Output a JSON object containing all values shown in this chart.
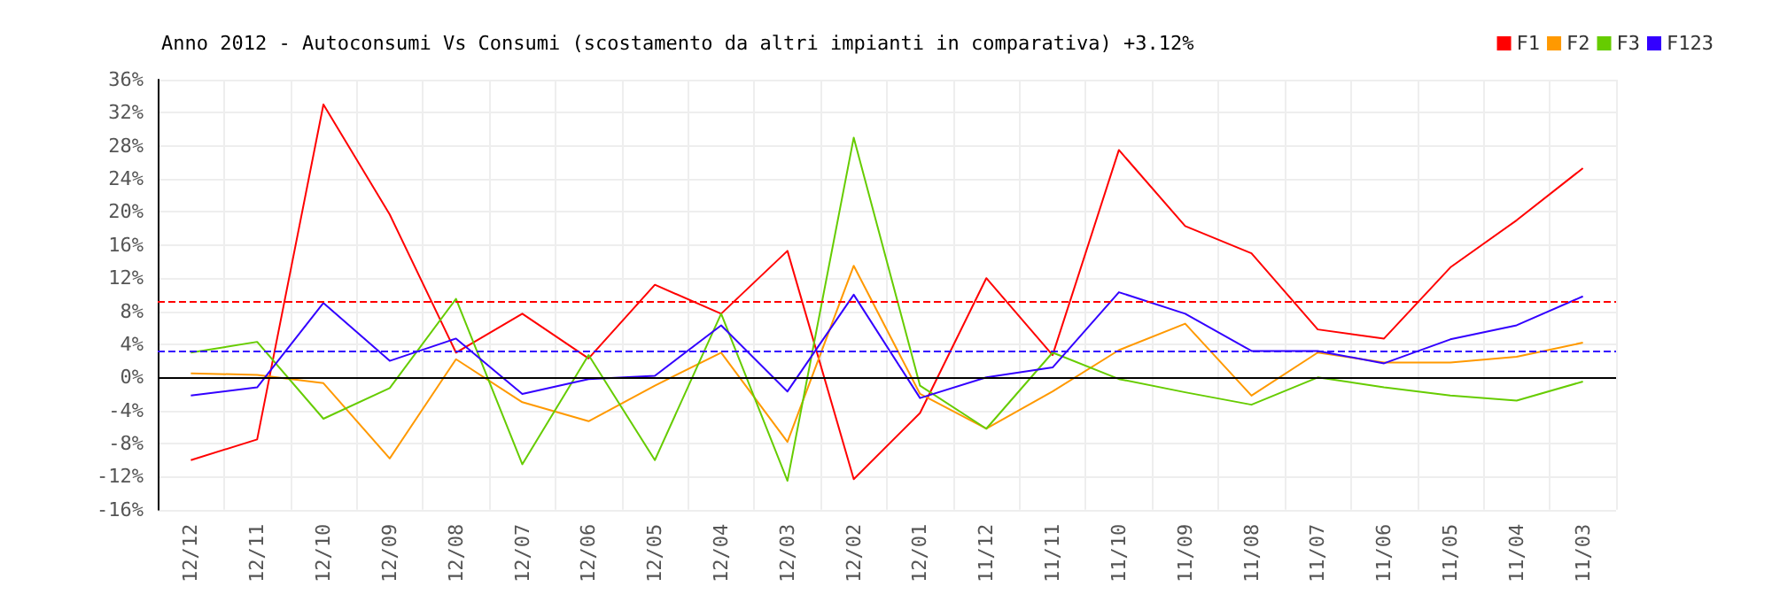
{
  "chart_data": {
    "type": "line",
    "title": "Anno 2012 - Autoconsumi Vs Consumi (scostamento da altri impianti in comparativa) +3.12%",
    "categories": [
      "12/12",
      "12/11",
      "12/10",
      "12/09",
      "12/08",
      "12/07",
      "12/06",
      "12/05",
      "12/04",
      "12/03",
      "12/02",
      "12/01",
      "11/12",
      "11/11",
      "11/10",
      "11/09",
      "11/08",
      "11/07",
      "11/06",
      "11/05",
      "11/04",
      "11/03"
    ],
    "series": [
      {
        "name": "F1",
        "color": "#ff0000",
        "values": [
          -10,
          -7.5,
          33,
          19.7,
          3,
          7.7,
          2.3,
          11.2,
          7.7,
          15.3,
          -12.3,
          -4.3,
          12,
          2.7,
          27.5,
          18.3,
          15,
          5.8,
          4.7,
          13.3,
          19,
          25.3
        ]
      },
      {
        "name": "F2",
        "color": "#ff9900",
        "values": [
          0.5,
          0.3,
          -0.7,
          -9.8,
          2.2,
          -3,
          -5.3,
          -1,
          3,
          -7.8,
          13.5,
          -2,
          -6.2,
          -1.7,
          3.3,
          6.5,
          -2.2,
          3,
          1.8,
          1.8,
          2.5,
          4.2
        ]
      },
      {
        "name": "F3",
        "color": "#66cc00",
        "values": [
          3,
          4.3,
          -5,
          -1.3,
          9.5,
          -10.5,
          2.7,
          -10,
          7.7,
          -12.5,
          29,
          -1,
          -6.2,
          3,
          -0.2,
          -1.8,
          -3.3,
          0,
          -1.2,
          -2.2,
          -2.8,
          -0.5
        ]
      },
      {
        "name": "F123",
        "color": "#3300ff",
        "values": [
          -2.2,
          -1.2,
          9,
          2,
          4.7,
          -2,
          -0.2,
          0.2,
          6.3,
          -1.7,
          10,
          -2.5,
          0,
          1.2,
          10.3,
          7.7,
          3.2,
          3.2,
          1.7,
          4.6,
          6.3,
          9.8
        ]
      }
    ],
    "ylim": [
      -16,
      36
    ],
    "yticks": [
      {
        "value": -16,
        "label": "-16%"
      },
      {
        "value": -12,
        "label": "-12%"
      },
      {
        "value": -8,
        "label": "-8%"
      },
      {
        "value": -4,
        "label": "-4%"
      },
      {
        "value": 0,
        "label": "0%"
      },
      {
        "value": 4,
        "label": "4%"
      },
      {
        "value": 8,
        "label": "8%"
      },
      {
        "value": 12,
        "label": "12%"
      },
      {
        "value": 16,
        "label": "16%"
      },
      {
        "value": 20,
        "label": "20%"
      },
      {
        "value": 24,
        "label": "24%"
      },
      {
        "value": 28,
        "label": "28%"
      },
      {
        "value": 32,
        "label": "32%"
      },
      {
        "value": 36,
        "label": "36%"
      }
    ],
    "ref_lines": [
      {
        "axis": "y",
        "value": 9.2,
        "color": "#ff0000",
        "line_style": "dashed"
      },
      {
        "axis": "y",
        "value": 3.2,
        "color": "#3300ff",
        "line_style": "dashed"
      },
      {
        "axis": "y",
        "value": 0,
        "color": "#000000",
        "line_style": "solid"
      }
    ],
    "grid": true,
    "legend": "top right",
    "marker": "none",
    "line_style": "solid"
  }
}
